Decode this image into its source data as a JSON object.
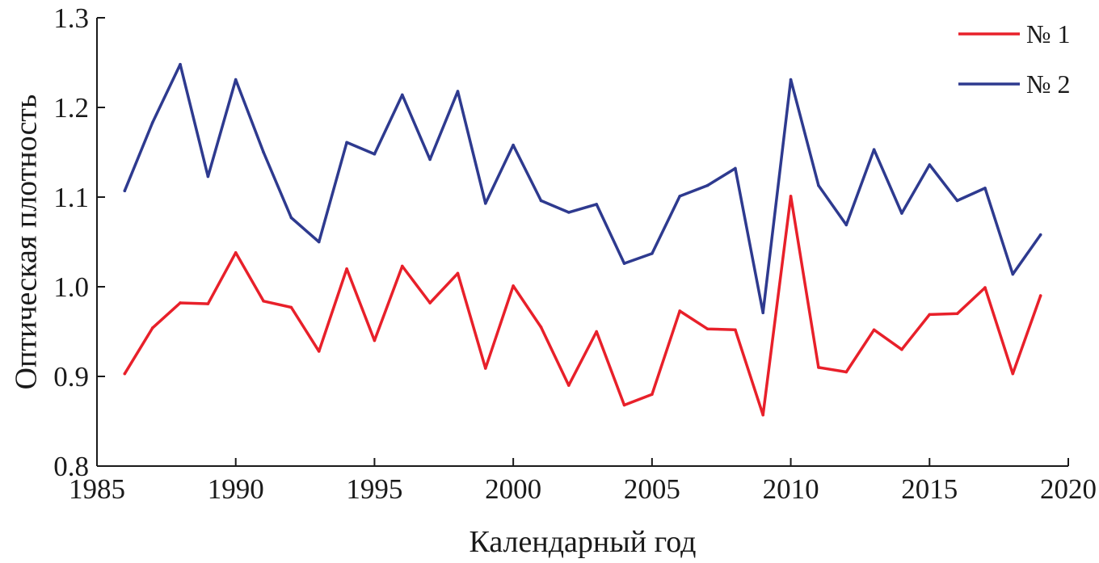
{
  "chart_data": {
    "type": "line",
    "title": "",
    "xlabel": "Календарный год",
    "ylabel": "Оптическая плотность",
    "xlim": [
      1985,
      2020
    ],
    "ylim": [
      0.8,
      1.3
    ],
    "xticks": [
      1985,
      1990,
      1995,
      2000,
      2005,
      2010,
      2015,
      2020
    ],
    "xtick_labels": [
      "1985",
      "1990",
      "1995",
      "2000",
      "2005",
      "2010",
      "2015",
      "2020"
    ],
    "yticks": [
      0.8,
      0.9,
      1.0,
      1.1,
      1.2,
      1.3
    ],
    "ytick_labels": [
      "0.8",
      "0.9",
      "1.0",
      "1.1",
      "1.2",
      "1.3"
    ],
    "grid": false,
    "legend_position": "top-right",
    "x": [
      1986,
      1987,
      1988,
      1989,
      1990,
      1991,
      1992,
      1993,
      1994,
      1995,
      1996,
      1997,
      1998,
      1999,
      2000,
      2001,
      2002,
      2003,
      2004,
      2005,
      2006,
      2007,
      2008,
      2009,
      2010,
      2011,
      2012,
      2013,
      2014,
      2015,
      2016,
      2017,
      2018,
      2019
    ],
    "series": [
      {
        "name": "№ 1",
        "color": "#e8202a",
        "values": [
          0.903,
          0.954,
          0.982,
          0.981,
          1.038,
          0.984,
          0.977,
          0.928,
          1.02,
          0.94,
          1.023,
          0.982,
          1.015,
          0.909,
          1.001,
          0.955,
          0.89,
          0.95,
          0.868,
          0.88,
          0.973,
          0.953,
          0.952,
          0.857,
          1.101,
          0.91,
          0.905,
          0.952,
          0.93,
          0.969,
          0.97,
          0.999,
          0.903,
          0.99
        ]
      },
      {
        "name": "№ 2",
        "color": "#2e3a8f",
        "values": [
          1.107,
          1.183,
          1.248,
          1.123,
          1.231,
          1.15,
          1.077,
          1.05,
          1.161,
          1.148,
          1.214,
          1.142,
          1.218,
          1.093,
          1.158,
          1.096,
          1.083,
          1.092,
          1.026,
          1.037,
          1.101,
          1.113,
          1.132,
          0.971,
          1.231,
          1.113,
          1.069,
          1.153,
          1.082,
          1.136,
          1.096,
          1.11,
          1.014,
          1.058
        ]
      }
    ]
  }
}
